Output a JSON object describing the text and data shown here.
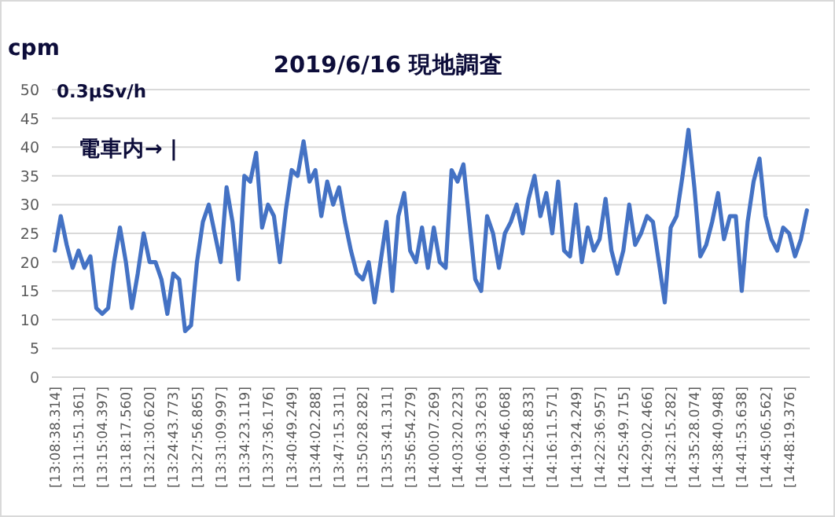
{
  "chart_data": {
    "type": "line",
    "title": "2019/6/16 現地調査",
    "ylabel": "cpm",
    "annotations": [
      "0.3μSv/h",
      "電車内→ |"
    ],
    "categories": [
      "[13:08:38.314]",
      null,
      null,
      null,
      "[13:11:51.361]",
      null,
      null,
      null,
      "[13:15:04.397]",
      null,
      null,
      null,
      "[13:18:17.560]",
      null,
      null,
      null,
      "[13:21:30.620]",
      null,
      null,
      null,
      "[13:24:43.773]",
      null,
      null,
      null,
      "[13:27:56.865]",
      null,
      null,
      null,
      "[13:31:09.997]",
      null,
      null,
      null,
      "[13:34:23.119]",
      null,
      null,
      null,
      "[13:37:36.176]",
      null,
      null,
      null,
      "[13:40:49.249]",
      null,
      null,
      null,
      "[13:44:02.288]",
      null,
      null,
      null,
      "[13:47:15.311]",
      null,
      null,
      null,
      "[13:50:28.282]",
      null,
      null,
      null,
      "[13:53:41.311]",
      null,
      null,
      null,
      "[13:56:54.279]",
      null,
      null,
      null,
      "[14:00:07.269]",
      null,
      null,
      null,
      "[14:03:20.223]",
      null,
      null,
      null,
      "[14:06:33.263]",
      null,
      null,
      null,
      "[14:09:46.068]",
      null,
      null,
      null,
      "[14:12:58.833]",
      null,
      null,
      null,
      "[14:16:11.571]",
      null,
      null,
      null,
      "[14:19:24.249]",
      null,
      null,
      null,
      "[14:22:36.957]",
      null,
      null,
      null,
      "[14:25:49.715]",
      null,
      null,
      null,
      "[14:29:02.466]",
      null,
      null,
      null,
      "[14:32:15.282]",
      null,
      null,
      null,
      "[14:35:28.074]",
      null,
      null,
      null,
      "[14:38:40.948]",
      null,
      null,
      null,
      "[14:41:53.638]",
      null,
      null,
      null,
      "[14:45:06.562]",
      null,
      null,
      null,
      "[14:48:19.376]",
      null,
      null,
      null
    ],
    "series": [
      {
        "color": "#4472c4",
        "values": [
          22,
          28,
          23,
          19,
          22,
          19,
          21,
          12,
          11,
          12,
          20,
          26,
          20,
          12,
          18,
          25,
          20,
          20,
          17,
          11,
          18,
          17,
          8,
          9,
          20,
          27,
          30,
          25,
          20,
          33,
          27,
          17,
          35,
          34,
          39,
          26,
          30,
          28,
          20,
          29,
          36,
          35,
          41,
          34,
          36,
          28,
          34,
          30,
          33,
          27,
          22,
          18,
          17,
          20,
          13,
          20,
          27,
          15,
          28,
          32,
          22,
          20,
          26,
          19,
          26,
          20,
          19,
          36,
          34,
          37,
          27,
          17,
          15,
          28,
          25,
          19,
          25,
          27,
          30,
          25,
          31,
          35,
          28,
          32,
          25,
          34,
          22,
          21,
          30,
          20,
          26,
          22,
          24,
          31,
          22,
          18,
          22,
          30,
          23,
          25,
          28,
          27,
          20,
          13,
          26,
          28,
          35,
          43,
          33,
          21,
          23,
          27,
          32,
          24,
          28,
          28,
          15,
          27,
          34,
          38,
          28,
          24,
          22,
          26,
          25,
          21,
          24,
          29
        ]
      }
    ],
    "ylim": [
      0,
      50
    ],
    "yticks": [
      0,
      5,
      10,
      15,
      20,
      25,
      30,
      35,
      40,
      45,
      50
    ],
    "grid": "y",
    "marker": "none",
    "line_style": "solid"
  }
}
